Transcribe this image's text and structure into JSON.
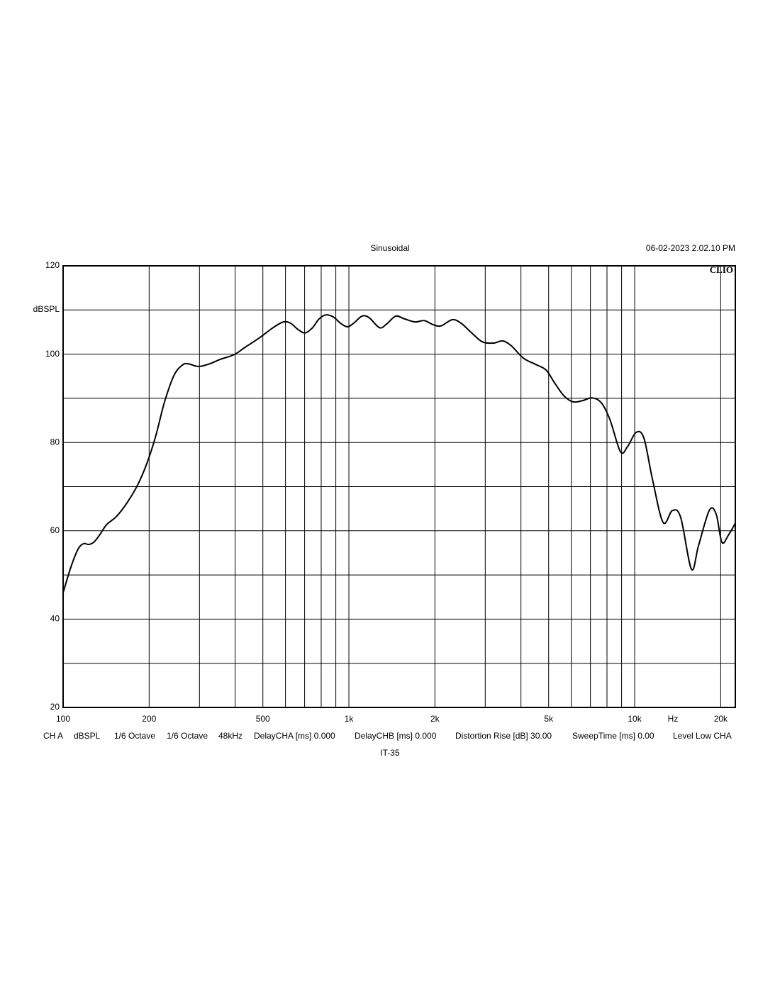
{
  "chart_data": {
    "type": "line",
    "title": "Sinusoidal",
    "timestamp": "06-02-2023 2.02.10 PM",
    "logo": "CLIO",
    "y_label": "dBSPL",
    "x_label": "Hz",
    "subtitle_bottom": "IT-35",
    "footer": [
      "CH A",
      "dBSPL",
      "1/6 Octave",
      "1/6 Octave",
      "48kHz",
      "DelayCHA [ms] 0.000",
      "DelayCHB [ms] 0.000",
      "Distortion Rise [dB] 30.00",
      "SweepTime [ms] 0.00",
      "Level Low CHA"
    ],
    "x_scale": "log",
    "xlim": [
      100,
      22500
    ],
    "ylim": [
      20,
      120
    ],
    "xticks": [
      100,
      200,
      500,
      {
        "value": 1000,
        "label": "1k"
      },
      {
        "value": 2000,
        "label": "2k"
      },
      {
        "value": 5000,
        "label": "5k"
      },
      {
        "value": 10000,
        "label": "10k"
      },
      {
        "value": 20000,
        "label": "20k"
      }
    ],
    "x_minor_ticks": [
      300,
      400,
      600,
      700,
      800,
      900,
      3000,
      4000,
      6000,
      7000,
      8000,
      9000
    ],
    "yticks": [
      20,
      40,
      60,
      80,
      100,
      120
    ],
    "y_minor_ticks": [
      30,
      50,
      70,
      90,
      110
    ],
    "grid": true,
    "series": [
      {
        "color": "#000000",
        "x": [
          100,
          106.5,
          112.7,
          118,
          122.8,
          128,
          134,
          142,
          154,
          168,
          183,
          197,
          211,
          226,
          244,
          261,
          274,
          298,
          325,
          354,
          397,
          432,
          484,
          543,
          590,
          625,
          663,
          702,
          744,
          787,
          833,
          883,
          935,
          990,
          1048,
          1110,
          1175,
          1279,
          1354,
          1457,
          1563,
          1704,
          1835,
          1966,
          2100,
          2300,
          2470,
          2690,
          2930,
          3210,
          3450,
          3700,
          4077,
          4496,
          4897,
          5244,
          5650,
          6085,
          6590,
          7100,
          7640,
          8190,
          8920,
          9450,
          10120,
          10770,
          11530,
          12570,
          13550,
          14490,
          15800,
          16720,
          18240,
          19280,
          20190,
          21270,
          22500
        ],
        "values": [
          46.0,
          51.8,
          55.8,
          57.1,
          56.9,
          57.4,
          59.0,
          61.4,
          63.3,
          66.5,
          70.6,
          75.5,
          81.5,
          89.0,
          95.1,
          97.5,
          97.8,
          97.2,
          97.8,
          98.8,
          99.9,
          101.5,
          103.6,
          106.0,
          107.3,
          107.0,
          105.6,
          104.8,
          105.9,
          108.0,
          108.9,
          108.4,
          107.0,
          106.2,
          107.2,
          108.6,
          108.3,
          106.0,
          106.8,
          108.6,
          108.0,
          107.3,
          107.6,
          106.7,
          106.4,
          107.8,
          107.0,
          104.8,
          102.8,
          102.5,
          103.0,
          101.9,
          99.1,
          97.7,
          96.4,
          93.5,
          90.6,
          89.2,
          89.5,
          90.1,
          89.0,
          85.2,
          77.9,
          79.1,
          82.3,
          81.0,
          71.8,
          61.9,
          64.6,
          63.0,
          51.3,
          56.6,
          64.6,
          63.8,
          57.4,
          59.0,
          61.7
        ]
      }
    ]
  }
}
